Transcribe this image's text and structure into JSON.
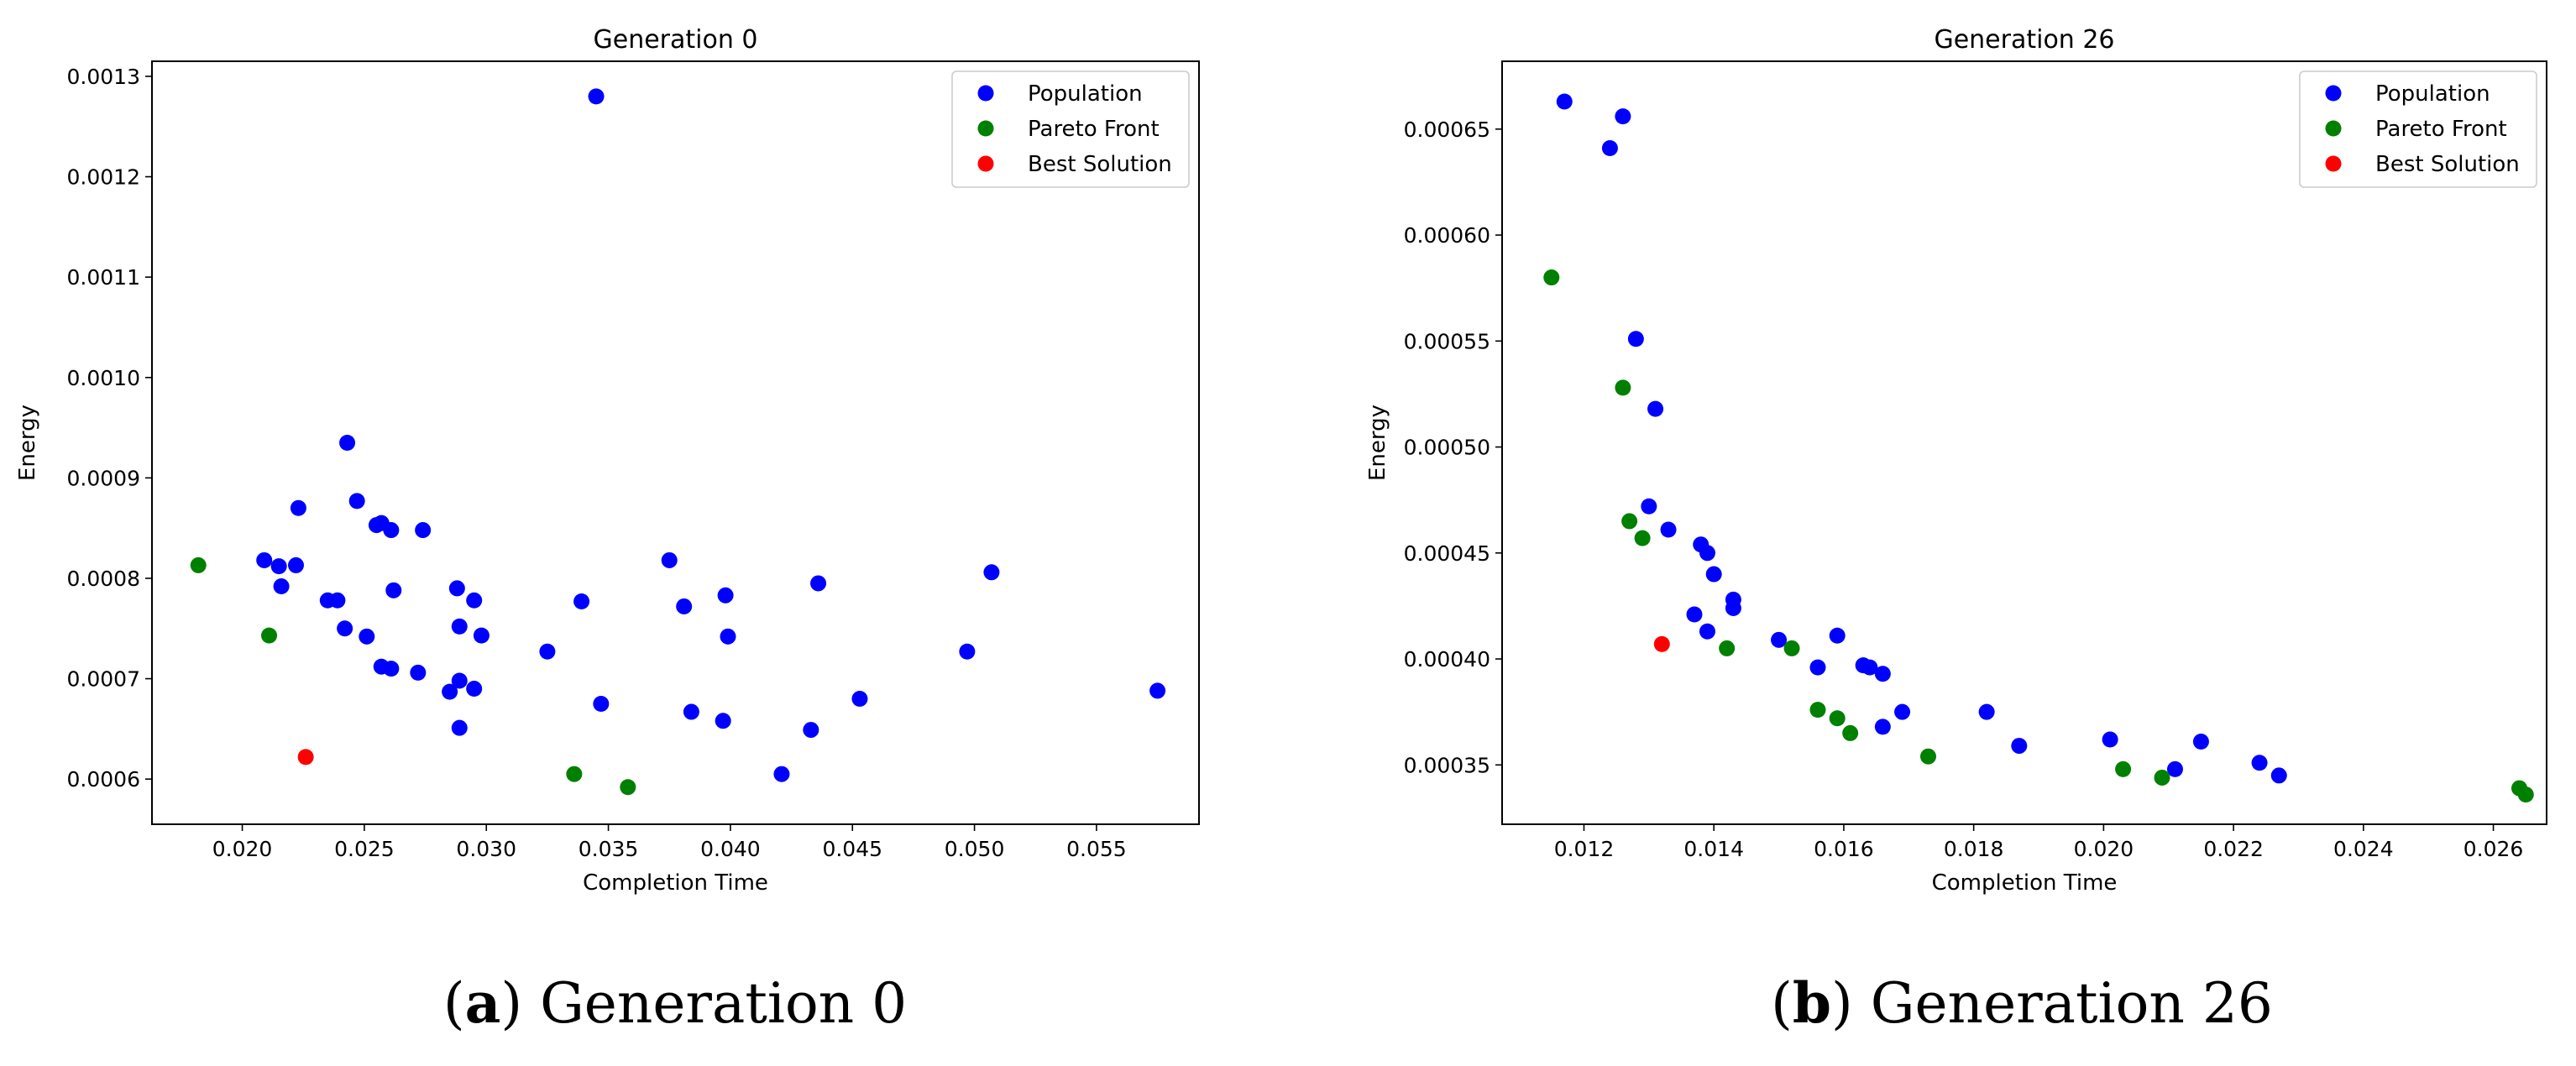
{
  "chart_data": [
    {
      "type": "scatter",
      "title": "Generation 0",
      "xlabel": "Completion Time",
      "ylabel": "Energy",
      "xlim": [
        0.0163,
        0.0592
      ],
      "ylim": [
        0.000555,
        0.001315
      ],
      "xticks": [
        0.02,
        0.025,
        0.03,
        0.035,
        0.04,
        0.045,
        0.05,
        0.055
      ],
      "xtick_labels": [
        "0.020",
        "0.025",
        "0.030",
        "0.035",
        "0.040",
        "0.045",
        "0.050",
        "0.055"
      ],
      "yticks": [
        0.0006,
        0.0007,
        0.0008,
        0.0009,
        0.001,
        0.0011,
        0.0012,
        0.0013
      ],
      "ytick_labels": [
        "0.0006",
        "0.0007",
        "0.0008",
        "0.0009",
        "0.0010",
        "0.0011",
        "0.0012",
        "0.0013"
      ],
      "legend": [
        "Population",
        "Pareto Front",
        "Best Solution"
      ],
      "legend_position": "top-right",
      "caption_label": "(a)",
      "caption_letter": "a",
      "caption_text": "Generation 0",
      "series": [
        {
          "name": "Population",
          "color": "#0000ff",
          "points": [
            [
              0.0345,
              0.00128
            ],
            [
              0.0243,
              0.000935
            ],
            [
              0.0247,
              0.000877
            ],
            [
              0.0223,
              0.00087
            ],
            [
              0.0255,
              0.000853
            ],
            [
              0.0257,
              0.000855
            ],
            [
              0.0261,
              0.000848
            ],
            [
              0.0274,
              0.000848
            ],
            [
              0.0209,
              0.000818
            ],
            [
              0.0215,
              0.000812
            ],
            [
              0.0222,
              0.000813
            ],
            [
              0.0216,
              0.000792
            ],
            [
              0.0262,
              0.000788
            ],
            [
              0.0288,
              0.00079
            ],
            [
              0.0295,
              0.000778
            ],
            [
              0.0235,
              0.000778
            ],
            [
              0.0239,
              0.000778
            ],
            [
              0.0339,
              0.000777
            ],
            [
              0.0375,
              0.000818
            ],
            [
              0.0381,
              0.000772
            ],
            [
              0.0398,
              0.000783
            ],
            [
              0.0436,
              0.000795
            ],
            [
              0.0507,
              0.000806
            ],
            [
              0.0242,
              0.00075
            ],
            [
              0.0251,
              0.000742
            ],
            [
              0.0289,
              0.000752
            ],
            [
              0.0298,
              0.000743
            ],
            [
              0.0399,
              0.000742
            ],
            [
              0.0325,
              0.000727
            ],
            [
              0.0497,
              0.000727
            ],
            [
              0.0257,
              0.000712
            ],
            [
              0.0261,
              0.00071
            ],
            [
              0.0272,
              0.000706
            ],
            [
              0.0289,
              0.000698
            ],
            [
              0.0295,
              0.00069
            ],
            [
              0.0285,
              0.000687
            ],
            [
              0.0575,
              0.000688
            ],
            [
              0.0453,
              0.00068
            ],
            [
              0.0347,
              0.000675
            ],
            [
              0.0384,
              0.000667
            ],
            [
              0.0397,
              0.000658
            ],
            [
              0.0289,
              0.000651
            ],
            [
              0.0433,
              0.000649
            ],
            [
              0.0421,
              0.000605
            ]
          ]
        },
        {
          "name": "Pareto Front",
          "color": "#008000",
          "points": [
            [
              0.0182,
              0.000813
            ],
            [
              0.0211,
              0.000743
            ],
            [
              0.0336,
              0.000605
            ],
            [
              0.0358,
              0.000592
            ]
          ]
        },
        {
          "name": "Best Solution",
          "color": "#ff0000",
          "points": [
            [
              0.0226,
              0.000622
            ]
          ]
        }
      ]
    },
    {
      "type": "scatter",
      "title": "Generation 26",
      "xlabel": "Completion Time",
      "ylabel": "Energy",
      "xlim": [
        0.01074,
        0.02682
      ],
      "ylim": [
        0.000322,
        0.000682
      ],
      "xticks": [
        0.012,
        0.014,
        0.016,
        0.018,
        0.02,
        0.022,
        0.024,
        0.026
      ],
      "xtick_labels": [
        "0.012",
        "0.014",
        "0.016",
        "0.018",
        "0.020",
        "0.022",
        "0.024",
        "0.026"
      ],
      "yticks": [
        0.00035,
        0.0004,
        0.00045,
        0.0005,
        0.00055,
        0.0006,
        0.00065
      ],
      "ytick_labels": [
        "0.00035",
        "0.00040",
        "0.00045",
        "0.00050",
        "0.00055",
        "0.00060",
        "0.00065"
      ],
      "legend": [
        "Population",
        "Pareto Front",
        "Best Solution"
      ],
      "legend_position": "top-right",
      "caption_label": "(b)",
      "caption_letter": "b",
      "caption_text": "Generation 26",
      "series": [
        {
          "name": "Population",
          "color": "#0000ff",
          "points": [
            [
              0.0117,
              0.000663
            ],
            [
              0.0126,
              0.000656
            ],
            [
              0.0124,
              0.000641
            ],
            [
              0.0128,
              0.000551
            ],
            [
              0.0131,
              0.000518
            ],
            [
              0.013,
              0.000472
            ],
            [
              0.0133,
              0.000461
            ],
            [
              0.0138,
              0.000454
            ],
            [
              0.0139,
              0.00045
            ],
            [
              0.014,
              0.00044
            ],
            [
              0.0143,
              0.000428
            ],
            [
              0.0143,
              0.000424
            ],
            [
              0.0137,
              0.000421
            ],
            [
              0.0139,
              0.000413
            ],
            [
              0.015,
              0.000409
            ],
            [
              0.0159,
              0.000411
            ],
            [
              0.0163,
              0.000397
            ],
            [
              0.0164,
              0.000396
            ],
            [
              0.0166,
              0.000393
            ],
            [
              0.0156,
              0.000396
            ],
            [
              0.0169,
              0.000375
            ],
            [
              0.0182,
              0.000375
            ],
            [
              0.0166,
              0.000368
            ],
            [
              0.0187,
              0.000359
            ],
            [
              0.0201,
              0.000362
            ],
            [
              0.0215,
              0.000361
            ],
            [
              0.0224,
              0.000351
            ],
            [
              0.0211,
              0.000348
            ],
            [
              0.0227,
              0.000345
            ]
          ]
        },
        {
          "name": "Pareto Front",
          "color": "#008000",
          "points": [
            [
              0.0115,
              0.00058
            ],
            [
              0.0126,
              0.000528
            ],
            [
              0.0127,
              0.000465
            ],
            [
              0.0129,
              0.000457
            ],
            [
              0.0142,
              0.000405
            ],
            [
              0.0152,
              0.000405
            ],
            [
              0.0156,
              0.000376
            ],
            [
              0.0159,
              0.000372
            ],
            [
              0.0161,
              0.000365
            ],
            [
              0.0173,
              0.000354
            ],
            [
              0.0203,
              0.000348
            ],
            [
              0.0209,
              0.000344
            ],
            [
              0.0264,
              0.000339
            ],
            [
              0.0265,
              0.000336
            ]
          ]
        },
        {
          "name": "Best Solution",
          "color": "#ff0000",
          "points": [
            [
              0.0132,
              0.000407
            ]
          ]
        }
      ]
    }
  ]
}
